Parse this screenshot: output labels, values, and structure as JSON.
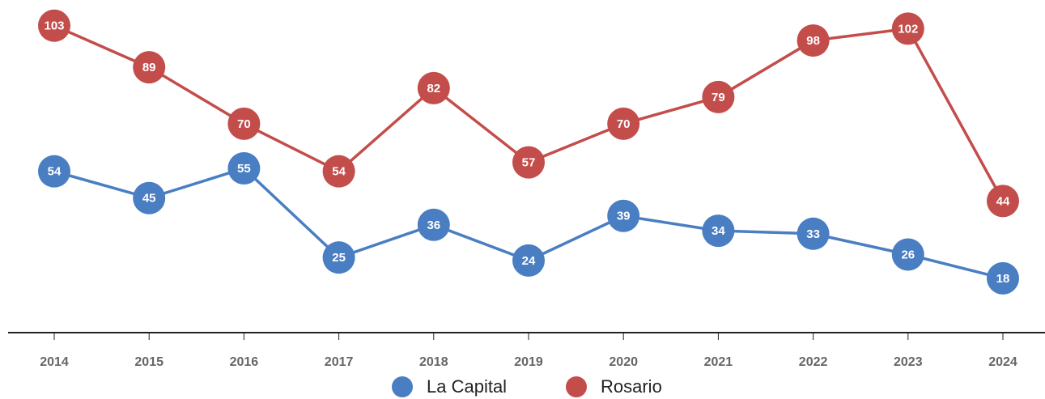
{
  "chart_data": {
    "type": "line",
    "categories": [
      "2014",
      "2015",
      "2016",
      "2017",
      "2018",
      "2019",
      "2020",
      "2021",
      "2022",
      "2023",
      "2024"
    ],
    "series": [
      {
        "name": "La Capital",
        "color": "#4a7ec2",
        "values": [
          54,
          45,
          55,
          25,
          36,
          24,
          39,
          34,
          33,
          26,
          18
        ]
      },
      {
        "name": "Rosario",
        "color": "#c34d4b",
        "values": [
          103,
          89,
          70,
          54,
          82,
          57,
          70,
          79,
          98,
          102,
          44
        ]
      }
    ],
    "ylim": [
      0,
      110
    ],
    "legend": "bottom"
  }
}
